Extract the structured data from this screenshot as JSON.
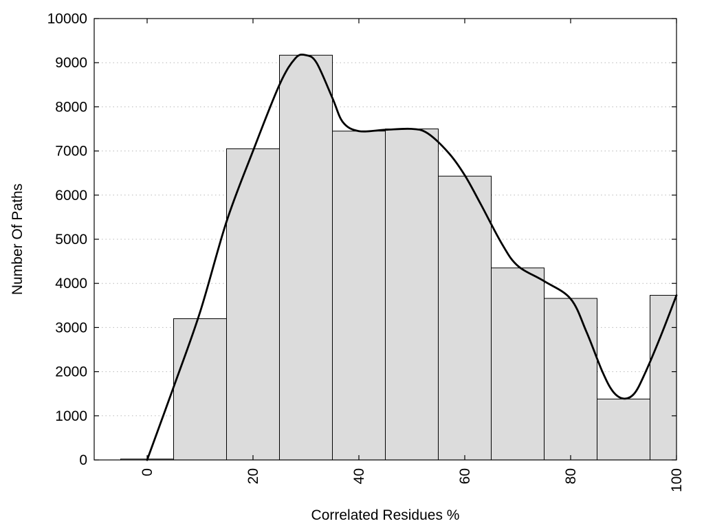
{
  "chart_data": {
    "type": "bar",
    "title": "",
    "xlabel": "Correlated Residues %",
    "ylabel": "Number Of Paths",
    "xlim": [
      -10,
      100
    ],
    "ylim": [
      0,
      10000
    ],
    "grid": "horizontal dotted",
    "bin_width": 10,
    "x": [
      0,
      10,
      20,
      30,
      40,
      50,
      60,
      70,
      80,
      90,
      100
    ],
    "values": [
      20,
      3200,
      7050,
      9170,
      7450,
      7500,
      6430,
      4350,
      3660,
      1380,
      3730
    ],
    "bar_color": "#dcdcdc",
    "x_ticks": [
      0,
      20,
      40,
      60,
      80,
      100
    ],
    "y_ticks": [
      0,
      1000,
      2000,
      3000,
      4000,
      5000,
      6000,
      7000,
      8000,
      9000,
      10000
    ],
    "curve": {
      "type": "line",
      "color": "#000000",
      "points": [
        [
          0,
          0
        ],
        [
          5,
          1650
        ],
        [
          10,
          3350
        ],
        [
          15,
          5400
        ],
        [
          20,
          7000
        ],
        [
          25,
          8500
        ],
        [
          28,
          9100
        ],
        [
          30,
          9170
        ],
        [
          32,
          9000
        ],
        [
          35,
          8200
        ],
        [
          37,
          7650
        ],
        [
          40,
          7450
        ],
        [
          45,
          7480
        ],
        [
          50,
          7500
        ],
        [
          53,
          7400
        ],
        [
          57,
          6950
        ],
        [
          60,
          6450
        ],
        [
          63,
          5800
        ],
        [
          67,
          4900
        ],
        [
          70,
          4400
        ],
        [
          75,
          4050
        ],
        [
          80,
          3650
        ],
        [
          83,
          2900
        ],
        [
          86,
          2000
        ],
        [
          88,
          1550
        ],
        [
          90,
          1390
        ],
        [
          92,
          1500
        ],
        [
          94,
          1950
        ],
        [
          97,
          2800
        ],
        [
          100,
          3730
        ]
      ]
    }
  }
}
